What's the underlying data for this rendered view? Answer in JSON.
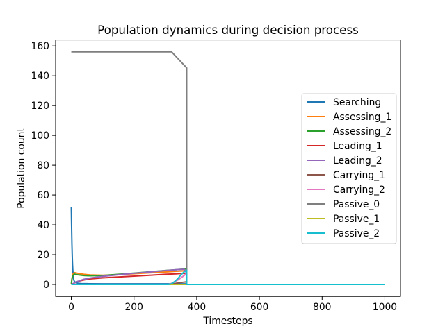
{
  "chart_data": {
    "type": "line",
    "title": "Population dynamics during decision process",
    "xlabel": "Timesteps",
    "ylabel": "Population count",
    "xlim": [
      -50,
      1050
    ],
    "ylim": [
      -8,
      164
    ],
    "xticks": [
      0,
      200,
      400,
      600,
      800,
      1000
    ],
    "yticks": [
      0,
      20,
      40,
      60,
      80,
      100,
      120,
      140,
      160
    ],
    "grid": false,
    "legend": "center-right",
    "series": [
      {
        "name": "Searching",
        "color": "#1f77b4",
        "x": [
          0,
          1,
          2,
          3,
          4,
          5,
          6,
          8,
          10,
          15,
          20,
          30,
          50,
          100,
          200,
          300,
          320,
          340,
          360,
          368,
          368,
          1000
        ],
        "y": [
          52,
          38,
          27,
          19,
          13,
          9,
          6,
          3,
          2,
          1.2,
          0.9,
          0.6,
          0.5,
          0.4,
          0.4,
          0.4,
          0.4,
          0.4,
          0.4,
          0.4,
          0,
          0
        ]
      },
      {
        "name": "Assessing_1",
        "color": "#ff7f0e",
        "x": [
          0,
          2,
          5,
          10,
          20,
          40,
          60,
          100,
          150,
          200,
          250,
          300,
          340,
          368,
          368,
          1000
        ],
        "y": [
          0,
          4,
          7,
          8,
          7.5,
          6.8,
          6.4,
          6.2,
          6.6,
          7.2,
          7.8,
          8.4,
          8.9,
          9.2,
          0,
          0
        ]
      },
      {
        "name": "Assessing_2",
        "color": "#2ca02c",
        "x": [
          0,
          2,
          5,
          10,
          20,
          40,
          60,
          100,
          150,
          200,
          250,
          300,
          340,
          368,
          368,
          1000
        ],
        "y": [
          0,
          3.5,
          6,
          7,
          6.5,
          6,
          5.8,
          6,
          6.8,
          7.6,
          8.5,
          9.4,
          10,
          10.4,
          0,
          0
        ]
      },
      {
        "name": "Leading_1",
        "color": "#d62728",
        "x": [
          0,
          5,
          10,
          20,
          40,
          60,
          100,
          150,
          200,
          250,
          300,
          340,
          368,
          368,
          1000
        ],
        "y": [
          0,
          0.5,
          1,
          2,
          3,
          3.7,
          4.4,
          5,
          5.6,
          6.2,
          6.8,
          7.2,
          7.5,
          0,
          0
        ]
      },
      {
        "name": "Leading_2",
        "color": "#9467bd",
        "x": [
          0,
          5,
          10,
          20,
          40,
          60,
          100,
          150,
          200,
          250,
          300,
          340,
          360,
          368,
          368,
          1000
        ],
        "y": [
          0,
          0.5,
          1,
          2,
          3.5,
          4.3,
          5.4,
          6.5,
          7.5,
          8.4,
          9.3,
          10,
          10.2,
          7.5,
          0,
          0
        ]
      },
      {
        "name": "Carrying_1",
        "color": "#8c564b",
        "x": [
          0,
          310,
          320,
          340,
          360,
          368,
          368,
          1000
        ],
        "y": [
          0,
          0,
          0.3,
          1,
          1.6,
          1.8,
          0,
          0
        ]
      },
      {
        "name": "Carrying_2",
        "color": "#e377c2",
        "x": [
          0,
          310,
          320,
          340,
          360,
          368,
          368,
          1000
        ],
        "y": [
          0,
          0,
          0.8,
          3,
          6,
          7.5,
          0,
          0
        ]
      },
      {
        "name": "Passive_0",
        "color": "#7f7f7f",
        "x": [
          0,
          100,
          200,
          300,
          320,
          368,
          368,
          1000
        ],
        "y": [
          156,
          156,
          156,
          156,
          156,
          145.3,
          0,
          0
        ]
      },
      {
        "name": "Passive_1",
        "color": "#bcbd22",
        "x": [
          0,
          300,
          340,
          368,
          368,
          1000
        ],
        "y": [
          0,
          0,
          0,
          0,
          0,
          0
        ]
      },
      {
        "name": "Passive_2",
        "color": "#17becf",
        "x": [
          0,
          310,
          320,
          330,
          340,
          350,
          360,
          368,
          368,
          1000
        ],
        "y": [
          0,
          0,
          0.5,
          2,
          4,
          6.5,
          8.5,
          9.5,
          0,
          0
        ]
      }
    ]
  }
}
